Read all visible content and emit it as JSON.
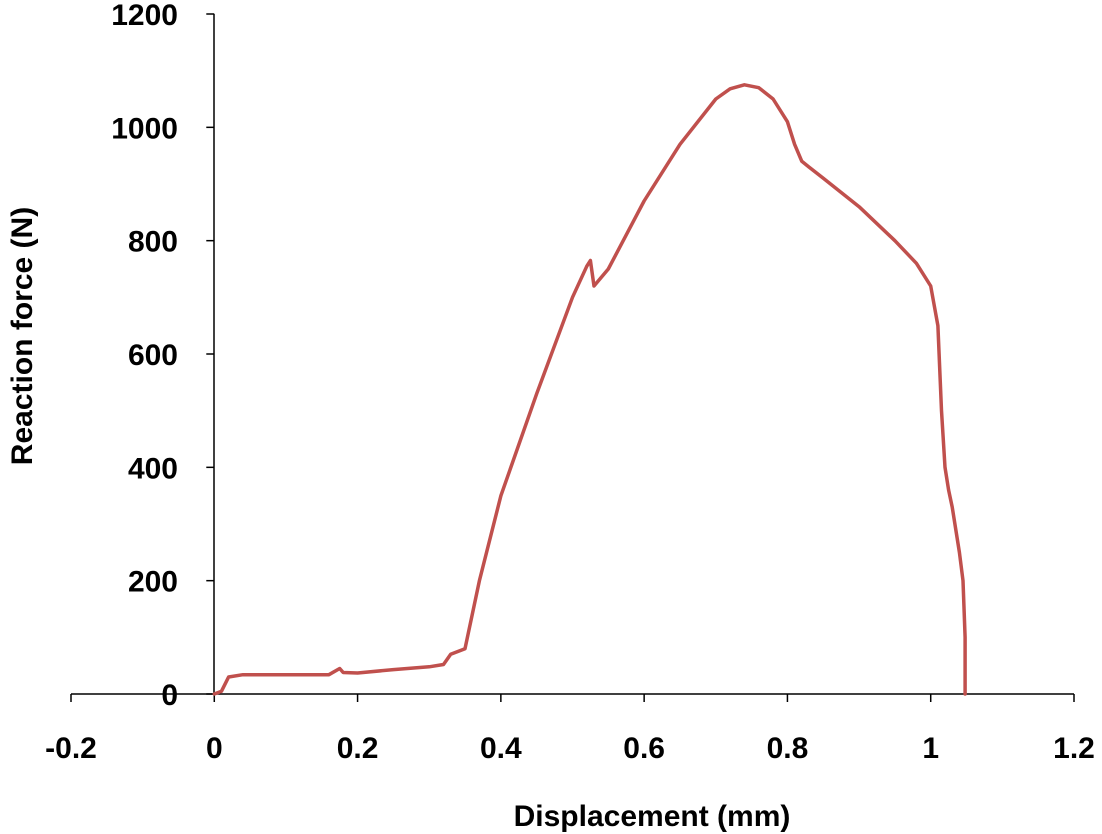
{
  "chart_data": {
    "type": "line",
    "title": "",
    "xlabel": "Displacement (mm)",
    "ylabel": "Reaction force (N)",
    "xlim": [
      -0.2,
      1.2
    ],
    "ylim": [
      0,
      1200
    ],
    "x_ticks": [
      -0.2,
      0,
      0.2,
      0.4,
      0.6,
      0.8,
      1,
      1.2
    ],
    "x_tick_labels": [
      "-0.2",
      "0",
      "0.2",
      "0.4",
      "0.6",
      "0.8",
      "1",
      "1.2"
    ],
    "y_ticks": [
      0,
      200,
      400,
      600,
      800,
      1000,
      1200
    ],
    "y_tick_labels": [
      "0",
      "200",
      "400",
      "600",
      "800",
      "1000",
      "1200"
    ],
    "grid": false,
    "legend": "none",
    "series": [
      {
        "color": "#c0504d",
        "x": [
          0.0,
          0.01,
          0.02,
          0.04,
          0.08,
          0.12,
          0.16,
          0.175,
          0.18,
          0.2,
          0.25,
          0.3,
          0.32,
          0.33,
          0.35,
          0.37,
          0.4,
          0.45,
          0.5,
          0.52,
          0.525,
          0.53,
          0.55,
          0.6,
          0.65,
          0.7,
          0.72,
          0.74,
          0.76,
          0.78,
          0.8,
          0.81,
          0.82,
          0.83,
          0.85,
          0.9,
          0.95,
          0.98,
          1.0,
          1.01,
          1.015,
          1.02,
          1.025,
          1.03,
          1.04,
          1.045,
          1.048,
          1.048
        ],
        "y": [
          0,
          5,
          30,
          34,
          34,
          34,
          34,
          45,
          38,
          37,
          43,
          48,
          52,
          70,
          80,
          200,
          350,
          530,
          700,
          755,
          765,
          720,
          750,
          870,
          970,
          1050,
          1068,
          1075,
          1070,
          1050,
          1010,
          970,
          940,
          930,
          910,
          860,
          800,
          760,
          720,
          650,
          500,
          400,
          360,
          330,
          250,
          200,
          100,
          0
        ]
      }
    ]
  }
}
